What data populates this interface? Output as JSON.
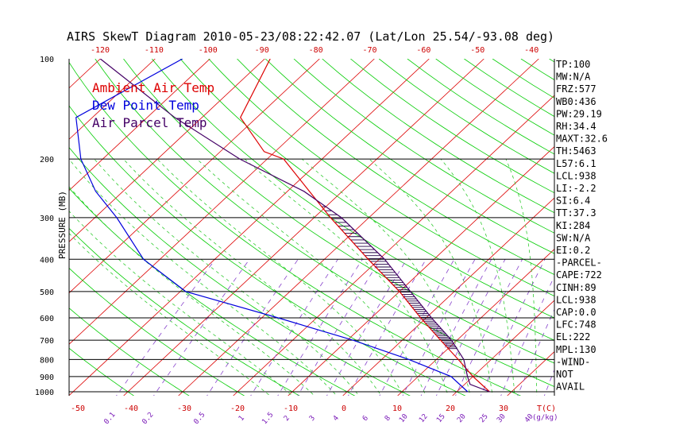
{
  "chart_data": {
    "type": "skewt",
    "title": "AIRS SkewT Diagram 2010-05-23/08:22:42.07 (Lat/Lon 25.54/-93.08 deg)",
    "ylabel": "PRESSURE (MB)",
    "pressure_ticks": [
      {
        "p": 100,
        "label": "100"
      },
      {
        "p": 200,
        "label": "200"
      },
      {
        "p": 300,
        "label": "300"
      },
      {
        "p": 400,
        "label": "400"
      },
      {
        "p": 500,
        "label": "500"
      },
      {
        "p": 600,
        "label": "600"
      },
      {
        "p": 700,
        "label": "700"
      },
      {
        "p": 800,
        "label": "800"
      },
      {
        "p": 900,
        "label": "900"
      },
      {
        "p": 1000,
        "label": "1000"
      }
    ],
    "top_temp_ticks": [
      "-120",
      "-110",
      "-100",
      "-90",
      "-80",
      "-70",
      "-60",
      "-50",
      "-40"
    ],
    "bottom_temp_ticks": [
      "-50",
      "-40",
      "-30",
      "-20",
      "-10",
      "0",
      "10",
      "20",
      "30"
    ],
    "bottom_temp_unit": "T(C)",
    "mixing_ratio_ticks": [
      "0.1",
      "0.2",
      "0.5",
      "1",
      "1.5",
      "2",
      "3",
      "4",
      "6",
      "8",
      "10",
      "12",
      "15",
      "20",
      "25",
      "30",
      "40"
    ],
    "mixing_ratio_unit": "(g/kg)",
    "legend": [
      {
        "name": "Ambient Air Temp",
        "color": "#dd0000"
      },
      {
        "name": "Dew Point Temp",
        "color": "#0000dd"
      },
      {
        "name": "Air Parcel Temp",
        "color": "#440066"
      }
    ],
    "series": [
      {
        "name": "Ambient Air Temp",
        "color": "#dd0000",
        "points": [
          [
            100,
            -79
          ],
          [
            150,
            -73
          ],
          [
            190,
            -62
          ],
          [
            200,
            -57
          ],
          [
            250,
            -46
          ],
          [
            300,
            -37
          ],
          [
            400,
            -22
          ],
          [
            500,
            -10
          ],
          [
            600,
            -1
          ],
          [
            700,
            7
          ],
          [
            800,
            14
          ],
          [
            900,
            20
          ],
          [
            1000,
            26
          ]
        ]
      },
      {
        "name": "Dew Point Temp",
        "color": "#0000dd",
        "points": [
          [
            100,
            -95
          ],
          [
            150,
            -103
          ],
          [
            200,
            -94
          ],
          [
            250,
            -85
          ],
          [
            300,
            -76
          ],
          [
            400,
            -63
          ],
          [
            500,
            -49
          ],
          [
            600,
            -27
          ],
          [
            700,
            -9
          ],
          [
            800,
            5
          ],
          [
            900,
            16
          ],
          [
            1000,
            22
          ]
        ]
      },
      {
        "name": "Air Parcel Temp",
        "color": "#440066",
        "points": [
          [
            100,
            -110
          ],
          [
            150,
            -85
          ],
          [
            200,
            -65
          ],
          [
            250,
            -47
          ],
          [
            300,
            -35
          ],
          [
            400,
            -19
          ],
          [
            500,
            -8
          ],
          [
            600,
            1
          ],
          [
            700,
            9
          ],
          [
            800,
            15
          ],
          [
            900,
            19
          ],
          [
            950,
            21
          ],
          [
            1000,
            26
          ]
        ]
      }
    ],
    "stats": [
      "TP:100",
      "MW:N/A",
      "FRZ:577",
      "WB0:436",
      "PW:29.19",
      "RH:34.4",
      "MAXT:32.6",
      "TH:5463",
      "L57:6.1",
      "LCL:938",
      "LI:-2.2",
      "SI:6.4",
      "TT:37.3",
      "KI:284",
      "SW:N/A",
      "EI:0.2",
      "-PARCEL-",
      "CAPE:722",
      "CINH:89",
      "LCL:938",
      "CAP:0.0",
      "LFC:748",
      "EL:222",
      "MPL:130",
      "-WIND-",
      "NOT",
      "AVAIL"
    ]
  },
  "colors": {
    "isotherm": "#dd0000",
    "dry_adiabat": "#00cc00",
    "moist_adiabat": "#33cc33",
    "mixing_ratio": "#8844cc",
    "isobar": "#000000",
    "hatch": "#220044"
  }
}
